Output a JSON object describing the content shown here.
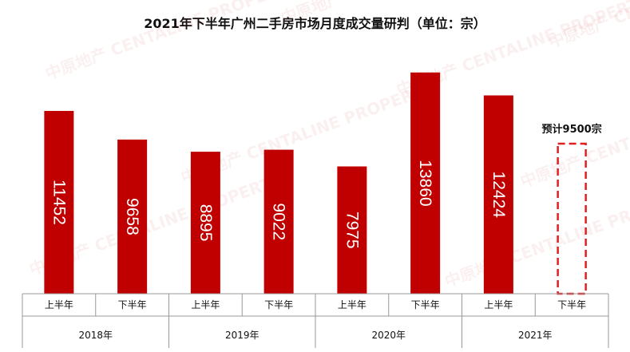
{
  "chart_data": {
    "type": "bar",
    "title": "2021年下半年广州二手房市场月度成交量研判（单位：宗）",
    "groups": [
      "2018年",
      "2019年",
      "2020年",
      "2021年"
    ],
    "sub_categories": [
      "上半年",
      "下半年"
    ],
    "categories": [
      "2018年 上半年",
      "2018年 下半年",
      "2019年 上半年",
      "2019年 下半年",
      "2020年 上半年",
      "2020年 下半年",
      "2021年 上半年",
      "2021年 下半年"
    ],
    "values": [
      11452,
      9658,
      8895,
      9022,
      7975,
      13860,
      12424,
      null
    ],
    "forecast": {
      "category": "2021年 下半年",
      "value": 9500,
      "label": "预计9500宗"
    },
    "ylim": [
      0,
      15300
    ],
    "xlabel": "",
    "ylabel": "",
    "grid": false,
    "legend": "none",
    "colors": {
      "bar": "#c00000",
      "forecast_outline": "#e02020",
      "axis": "#999999"
    },
    "watermark": "中原地产 CENTALINE PROPERTY"
  }
}
